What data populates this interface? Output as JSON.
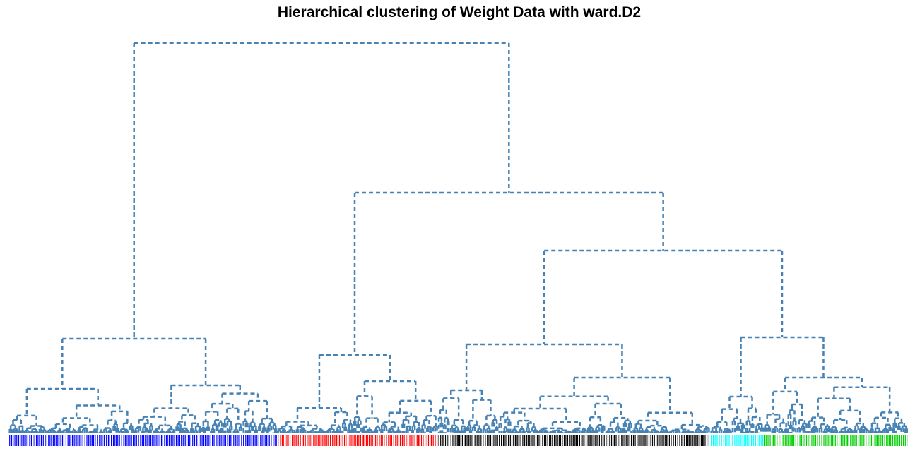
{
  "chart_data": {
    "type": "dendrogram",
    "title": "Hierarchical clustering of Weight Data with ward.D2",
    "line_color": "#4682b4",
    "label_colors": [
      "#0000ff",
      "#ff0000",
      "#000000",
      "#00ffff",
      "#00cc00"
    ]
  }
}
